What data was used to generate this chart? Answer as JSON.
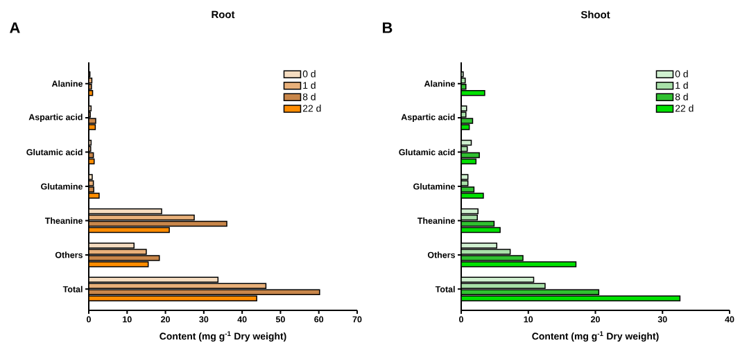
{
  "chart_data": [
    {
      "type": "bar",
      "orientation": "horizontal",
      "title": "Root",
      "xlabel": "Content (mg g$^{-1}$ Dry weight)",
      "annotations": [
        "A"
      ],
      "categories": [
        "Alanine",
        "Aspartic acid",
        "Glutamic acid",
        "Glutamine",
        "Theanine",
        "Others",
        "Total"
      ],
      "series": [
        {
          "name": "0 d",
          "color": "#f5dcc0",
          "values": [
            0.3,
            0.6,
            0.6,
            0.9,
            19,
            11.8,
            33.7
          ]
        },
        {
          "name": "1 d",
          "color": "#e8b07a",
          "values": [
            0.8,
            0.4,
            0.5,
            1.2,
            27.5,
            15,
            46.2
          ]
        },
        {
          "name": "8 d",
          "color": "#c8864a",
          "values": [
            0.7,
            1.8,
            1.2,
            1.3,
            36,
            18.4,
            60.2
          ]
        },
        {
          "name": "22 d",
          "color": "#ff8c00",
          "values": [
            1.0,
            1.7,
            1.4,
            2.7,
            21,
            15.5,
            43.8
          ]
        }
      ],
      "xlim": [
        0,
        70
      ],
      "xticks": [
        0,
        10,
        20,
        30,
        40,
        50,
        60,
        70
      ],
      "legend": "top right"
    },
    {
      "type": "bar",
      "orientation": "horizontal",
      "title": "Shoot",
      "xlabel": "Content (mg g$^{-1}$ Dry weight)",
      "annotations": [
        "B"
      ],
      "categories": [
        "Alanine",
        "Aspartic acid",
        "Glutamic acid",
        "Glutamine",
        "Theanine",
        "Others",
        "Total"
      ],
      "series": [
        {
          "name": "0 d",
          "color": "#d0f0d0",
          "values": [
            0.3,
            0.8,
            1.5,
            1.0,
            2.5,
            5.3,
            10.8
          ]
        },
        {
          "name": "1 d",
          "color": "#a8e0a8",
          "values": [
            0.6,
            0.7,
            0.9,
            1.0,
            2.4,
            7.3,
            12.5
          ]
        },
        {
          "name": "8 d",
          "color": "#30c030",
          "values": [
            0.7,
            1.7,
            2.7,
            1.9,
            4.9,
            9.2,
            20.5
          ]
        },
        {
          "name": "22 d",
          "color": "#00e000",
          "values": [
            3.5,
            1.2,
            2.2,
            3.3,
            5.8,
            17.1,
            32.6
          ]
        }
      ],
      "xlim": [
        0,
        40
      ],
      "xticks": [
        0,
        10,
        20,
        30,
        40
      ],
      "legend": "top right"
    }
  ]
}
